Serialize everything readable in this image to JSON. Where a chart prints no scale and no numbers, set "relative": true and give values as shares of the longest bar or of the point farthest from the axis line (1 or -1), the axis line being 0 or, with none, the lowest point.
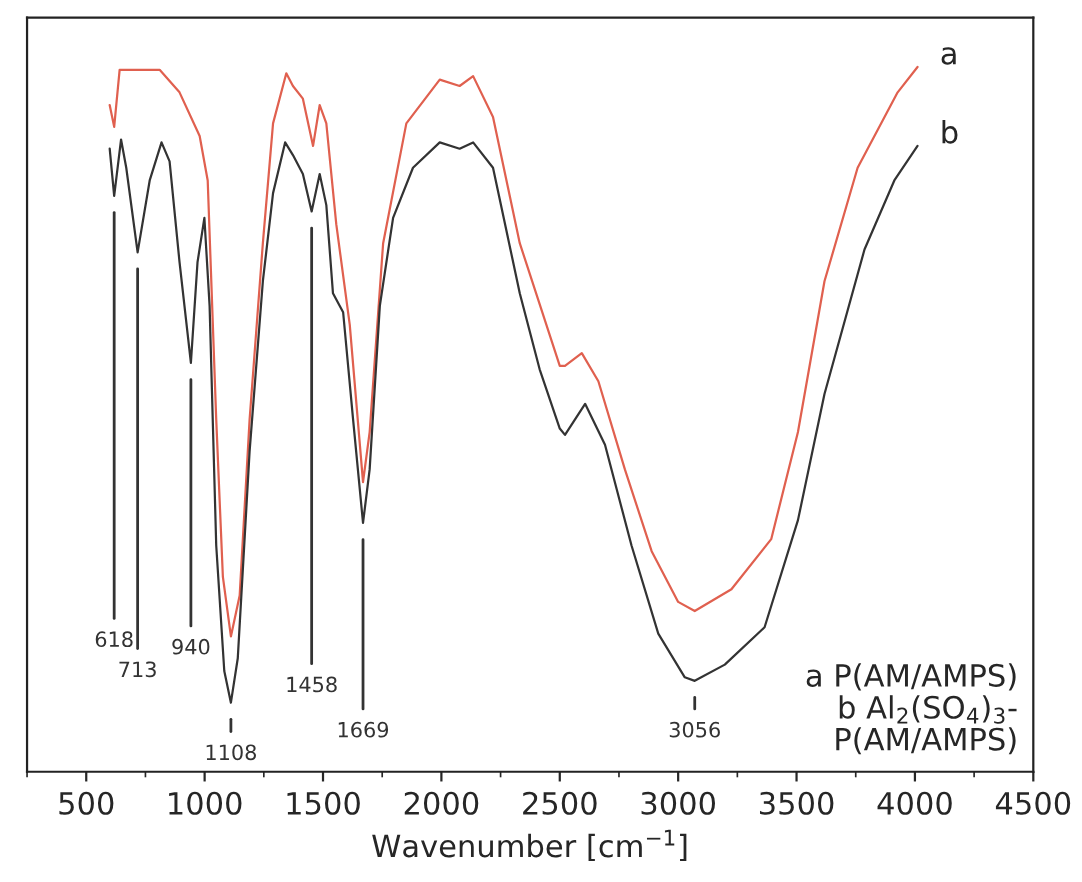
{
  "chart_data": {
    "type": "line",
    "relative": true,
    "xlabel": "Wavenumber [cm$^{−1}$]",
    "xlim": [
      250,
      4500
    ],
    "xticks": [
      500,
      1000,
      1500,
      2000,
      2500,
      3000,
      3500,
      4000,
      4500
    ],
    "legend": false,
    "grid": false,
    "series": [
      {
        "name": "a",
        "color": "#e0604f",
        "x": [
          599,
          618,
          641,
          810,
          894,
          979,
          1013,
          1049,
          1077,
          1111,
          1148,
          1190,
          1246,
          1289,
          1345,
          1373,
          1415,
          1458,
          1486,
          1514,
          1556,
          1613,
          1669,
          1697,
          1754,
          1852,
          1993,
          2077,
          2134,
          2218,
          2331,
          2500,
          2522,
          2593,
          2663,
          2775,
          2888,
          3000,
          3070,
          3225,
          3393,
          3506,
          3618,
          3758,
          3927,
          4011
        ],
        "values": [
          0.946,
          0.915,
          0.996,
          0.996,
          0.964,
          0.902,
          0.839,
          0.5,
          0.277,
          0.192,
          0.25,
          0.5,
          0.75,
          0.92,
          0.991,
          0.973,
          0.955,
          0.888,
          0.946,
          0.92,
          0.777,
          0.634,
          0.411,
          0.482,
          0.75,
          0.92,
          0.982,
          0.973,
          0.987,
          0.929,
          0.75,
          0.576,
          0.576,
          0.594,
          0.554,
          0.429,
          0.313,
          0.241,
          0.228,
          0.259,
          0.33,
          0.482,
          0.696,
          0.857,
          0.964,
          1.0
        ]
      },
      {
        "name": "b",
        "color": "#333333",
        "x": [
          599,
          618,
          647,
          669,
          717,
          768,
          818,
          852,
          894,
          942,
          970,
          999,
          1021,
          1049,
          1083,
          1111,
          1140,
          1190,
          1246,
          1289,
          1340,
          1373,
          1415,
          1452,
          1486,
          1514,
          1542,
          1585,
          1627,
          1669,
          1697,
          1740,
          1796,
          1880,
          1993,
          2077,
          2134,
          2218,
          2331,
          2415,
          2500,
          2522,
          2607,
          2691,
          2803,
          2916,
          3028,
          3070,
          3197,
          3365,
          3506,
          3618,
          3787,
          3913,
          4011
        ],
        "values": [
          0.884,
          0.817,
          0.897,
          0.857,
          0.737,
          0.839,
          0.893,
          0.866,
          0.723,
          0.58,
          0.723,
          0.786,
          0.661,
          0.321,
          0.143,
          0.098,
          0.161,
          0.455,
          0.696,
          0.821,
          0.893,
          0.875,
          0.848,
          0.795,
          0.848,
          0.804,
          0.679,
          0.652,
          0.5,
          0.353,
          0.429,
          0.661,
          0.786,
          0.857,
          0.893,
          0.884,
          0.893,
          0.857,
          0.679,
          0.571,
          0.487,
          0.478,
          0.522,
          0.464,
          0.321,
          0.196,
          0.134,
          0.129,
          0.152,
          0.205,
          0.357,
          0.536,
          0.741,
          0.839,
          0.888
        ]
      }
    ],
    "annotations": [
      {
        "text": "618",
        "x": 618,
        "y": 0.817
      },
      {
        "text": "713",
        "x": 717,
        "y": 0.737
      },
      {
        "text": "940",
        "x": 942,
        "y": 0.58
      },
      {
        "text": "1108",
        "x": 1111,
        "y": 0.098
      },
      {
        "text": "1458",
        "x": 1452,
        "y": 0.795
      },
      {
        "text": "1669",
        "x": 1669,
        "y": 0.353
      },
      {
        "text": "3056",
        "x": 3070,
        "y": 0.129
      },
      "a P(AM/AMPS)\nb Al$_{2}$(SO$_{4}$)$_{3}$-\n    P(AM/AMPS)"
    ]
  }
}
